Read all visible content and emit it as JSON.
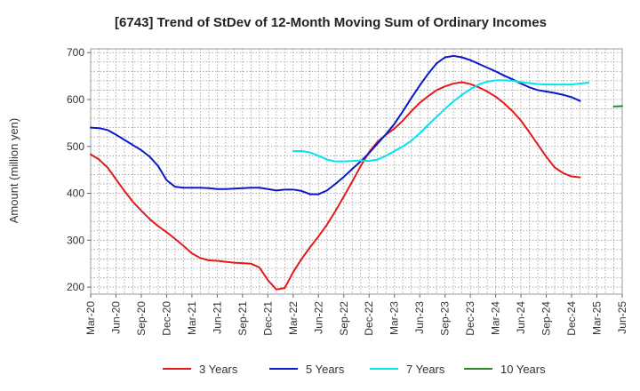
{
  "chart_data": {
    "type": "line",
    "title": "[6743]  Trend of StDev of 12-Month Moving Sum of Ordinary Incomes",
    "xlabel": "",
    "ylabel": "Amount (million yen)",
    "ylim": [
      185,
      708
    ],
    "yticks": [
      200,
      300,
      400,
      500,
      600,
      700
    ],
    "x_start": "2020-03",
    "x_end": "2025-06",
    "xtick_labels": [
      "Mar-20",
      "Jun-20",
      "Sep-20",
      "Dec-20",
      "Mar-21",
      "Jun-21",
      "Sep-21",
      "Dec-21",
      "Mar-22",
      "Jun-22",
      "Sep-22",
      "Dec-22",
      "Mar-23",
      "Jun-23",
      "Sep-23",
      "Dec-23",
      "Mar-24",
      "Jun-24",
      "Sep-24",
      "Dec-24",
      "Mar-25",
      "Jun-25"
    ],
    "grid": true,
    "legend_position": "bottom",
    "series": [
      {
        "name": "3 Years",
        "color": "#e31a1c",
        "start_index": 0,
        "values": [
          483,
          472,
          455,
          430,
          405,
          382,
          363,
          345,
          330,
          317,
          303,
          288,
          272,
          262,
          257,
          256,
          254,
          252,
          251,
          250,
          242,
          215,
          195,
          198,
          232,
          260,
          285,
          308,
          333,
          362,
          393,
          425,
          458,
          488,
          510,
          525,
          538,
          555,
          575,
          593,
          607,
          620,
          628,
          634,
          637,
          633,
          626,
          617,
          606,
          592,
          575,
          555,
          530,
          504,
          478,
          455,
          443,
          436,
          434
        ]
      },
      {
        "name": "5 Years",
        "color": "#0a18c8",
        "start_index": 0,
        "values": [
          540,
          539,
          535,
          525,
          514,
          503,
          492,
          478,
          458,
          428,
          414,
          412,
          412,
          412,
          411,
          409,
          409,
          410,
          411,
          412,
          412,
          409,
          406,
          408,
          408,
          405,
          398,
          398,
          406,
          420,
          435,
          452,
          468,
          486,
          506,
          526,
          548,
          575,
          603,
          630,
          655,
          677,
          690,
          693,
          690,
          684,
          676,
          668,
          660,
          651,
          643,
          634,
          626,
          620,
          617,
          614,
          610,
          605,
          597
        ]
      },
      {
        "name": "7 Years",
        "color": "#00e5ee",
        "start_index": 24,
        "values": [
          490,
          490,
          487,
          480,
          472,
          468,
          468,
          469,
          470,
          469,
          472,
          480,
          490,
          500,
          512,
          528,
          546,
          563,
          580,
          596,
          610,
          622,
          632,
          638,
          641,
          641,
          640,
          637,
          635,
          633,
          632,
          632,
          632,
          632,
          634,
          636
        ]
      },
      {
        "name": "10 Years",
        "color": "#2a8a2a",
        "start_index": 62,
        "values": [
          585,
          586
        ]
      }
    ]
  }
}
